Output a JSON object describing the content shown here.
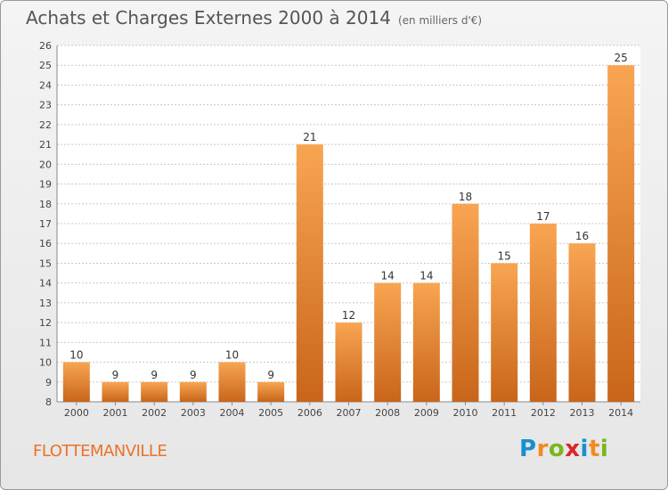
{
  "header": {
    "title": "Achats et Charges Externes 2000 à 2014",
    "unit": "(en milliers d'€)"
  },
  "commune": "FLOTTEMANVILLE",
  "logo": {
    "letters": [
      "P",
      "r",
      "o",
      "x",
      "i",
      "t",
      "i"
    ],
    "colors": [
      "#1a8fd0",
      "#f08a24",
      "#7ab51d",
      "#d9262b",
      "#1a8fd0",
      "#f08a24",
      "#7ab51d"
    ]
  },
  "colors": {
    "bar_light": "#f8a552",
    "bar_dark": "#c9651a",
    "grid": "#c8c8c8"
  },
  "chart_data": {
    "type": "bar",
    "title": "Achats et Charges Externes 2000 à 2014",
    "subtitle": "(en milliers d'€)",
    "categories": [
      "2000",
      "2001",
      "2002",
      "2003",
      "2004",
      "2005",
      "2006",
      "2007",
      "2008",
      "2009",
      "2010",
      "2011",
      "2012",
      "2013",
      "2014"
    ],
    "values": [
      10,
      9,
      9,
      9,
      10,
      9,
      21,
      12,
      14,
      14,
      18,
      15,
      17,
      16,
      25
    ],
    "ylim": [
      8,
      26
    ],
    "yticks": [
      8,
      9,
      10,
      11,
      12,
      13,
      14,
      15,
      16,
      17,
      18,
      19,
      20,
      21,
      22,
      23,
      24,
      25,
      26
    ],
    "grid": true
  }
}
